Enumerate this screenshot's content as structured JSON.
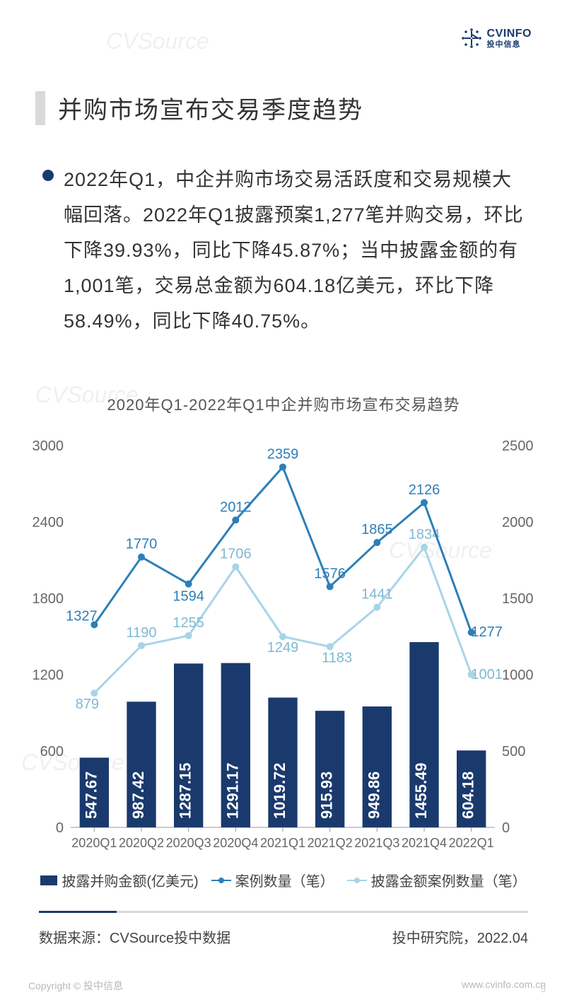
{
  "logo": {
    "main": "CVINFO",
    "sub": "投中信息",
    "color": "#1a3a6e"
  },
  "title": "并购市场宣布交易季度趋势",
  "body": "2022年Q1，中企并购市场交易活跃度和交易规模大幅回落。2022年Q1披露预案1,277笔并购交易，环比下降39.93%，同比下降45.87%；当中披露金额的有1,001笔，交易总金额为604.18亿美元，环比下降58.49%，同比下降40.75%。",
  "chart": {
    "title": "2020年Q1-2022年Q1中企并购市场宣布交易趋势",
    "categories": [
      "2020Q1",
      "2020Q2",
      "2020Q3",
      "2020Q4",
      "2021Q1",
      "2021Q2",
      "2021Q3",
      "2021Q4",
      "2022Q1"
    ],
    "bar_values": [
      547.67,
      987.42,
      1287.15,
      1291.17,
      1019.72,
      915.93,
      949.86,
      1455.49,
      604.18
    ],
    "line1_values": [
      1327,
      1770,
      1594,
      2012,
      2359,
      1576,
      1865,
      2126,
      1277
    ],
    "line2_values": [
      879,
      1190,
      1255,
      1706,
      1249,
      1183,
      1441,
      1834,
      1001
    ],
    "left_axis": {
      "min": 0,
      "max": 3000,
      "step": 600
    },
    "right_axis": {
      "min": 0,
      "max": 2500,
      "step": 500
    },
    "bar_color": "#1a3a6e",
    "line1_color": "#2d7fb8",
    "line2_color": "#a8d4e8",
    "axis_color": "#666",
    "tick_fontsize": 20,
    "bar_label_color": "#ffffff",
    "bar_label_fontsize": 22,
    "line_label_color_dark": "#2d7fb8",
    "line_label_color_light": "#7fb8d4",
    "bar_width_ratio": 0.62
  },
  "legend": {
    "bar": "披露并购金额(亿美元)",
    "line1": "案例数量（笔）",
    "line2": "披露金额案例数量（笔）"
  },
  "source_left": "数据来源：CVSource投中数据",
  "source_right": "投中研究院，2022.04",
  "footer_left": "Copyright © 投中信息",
  "footer_right": "www.cvinfo.com.cn",
  "page_number": "5",
  "watermark": "CVSource"
}
